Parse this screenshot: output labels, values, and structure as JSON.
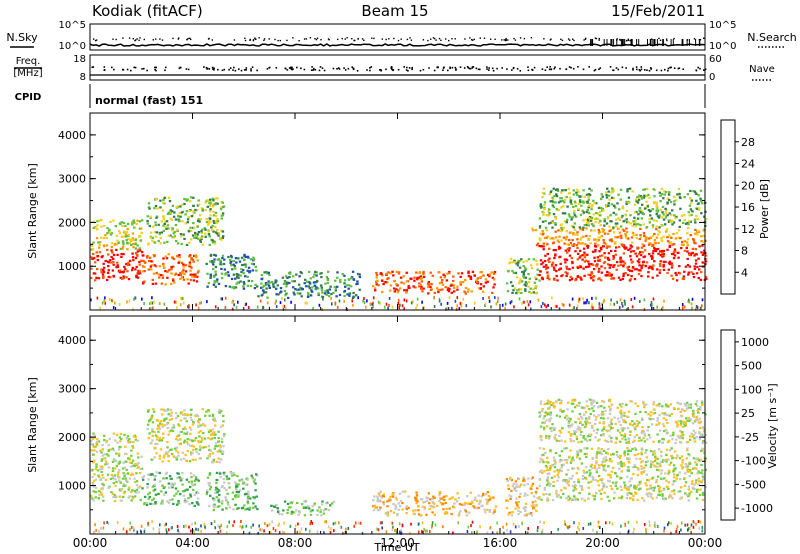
{
  "header": {
    "station": "Kodiak (fitACF)",
    "beam": "Beam 15",
    "date": "15/Feb/2011"
  },
  "strip_labels": {
    "nsky": "N.Sky",
    "nsearch": "N.Search",
    "freq": "Freq.",
    "mhz": "[MHz]",
    "nave": "Nave",
    "cpid": "CPID",
    "cpid_value": "normal (fast) 151"
  },
  "strips": {
    "noise_ticks_left": [
      "10^5",
      "10^0"
    ],
    "noise_ticks_right": [
      "10^5",
      "10^0"
    ],
    "freq_ticks_left": [
      "18",
      "8"
    ],
    "freq_ticks_right": [
      "60",
      "0"
    ]
  },
  "chart_data": [
    {
      "type": "heatmap",
      "panel": "power",
      "ylabel": "Slant Range [km]",
      "yticks": [
        "1000",
        "2000",
        "3000",
        "4000"
      ],
      "ylim": [
        0,
        4500
      ],
      "xlim": [
        0,
        24
      ],
      "colorbar_label": "Power [dB]",
      "colorbar_ticks": [
        "4",
        "8",
        "12",
        "16",
        "20",
        "24",
        "28"
      ],
      "colors": [
        "#0000ee",
        "#1f4fb0",
        "#2f7d4f",
        "#5fbf3f",
        "#f0d020",
        "#ff9a00",
        "#ff5a00",
        "#ff0000"
      ],
      "regions": [
        {
          "t0": 0.0,
          "t1": 2.0,
          "r0": 700,
          "r1": 1400,
          "level": 7
        },
        {
          "t0": 0.0,
          "t1": 2.0,
          "r0": 1400,
          "r1": 2100,
          "level": 4
        },
        {
          "t0": 2.0,
          "t1": 4.2,
          "r0": 600,
          "r1": 1300,
          "level": 6
        },
        {
          "t0": 2.2,
          "t1": 5.2,
          "r0": 1500,
          "r1": 2600,
          "level": 3
        },
        {
          "t0": 4.5,
          "t1": 6.5,
          "r0": 500,
          "r1": 1300,
          "level": 2
        },
        {
          "t0": 6.5,
          "t1": 10.5,
          "r0": 300,
          "r1": 900,
          "level": 2
        },
        {
          "t0": 11.0,
          "t1": 15.8,
          "r0": 400,
          "r1": 900,
          "level": 6
        },
        {
          "t0": 16.2,
          "t1": 17.5,
          "r0": 400,
          "r1": 1200,
          "level": 3
        },
        {
          "t0": 17.5,
          "t1": 24.0,
          "r0": 700,
          "r1": 1500,
          "level": 7
        },
        {
          "t0": 17.2,
          "t1": 24.0,
          "r0": 1500,
          "r1": 1900,
          "level": 5
        },
        {
          "t0": 17.5,
          "t1": 24.0,
          "r0": 1900,
          "r1": 2800,
          "level": 3
        }
      ]
    },
    {
      "type": "heatmap",
      "panel": "velocity",
      "ylabel": "Slant Range [km]",
      "yticks": [
        "1000",
        "2000",
        "3000",
        "4000"
      ],
      "ylim": [
        0,
        4500
      ],
      "xlim": [
        0,
        24
      ],
      "xlabel": "Time UT",
      "xticks": [
        "00:00",
        "04:00",
        "08:00",
        "12:00",
        "16:00",
        "20:00",
        "00:00"
      ],
      "colorbar_label": "Velocity [m s⁻¹]",
      "colorbar_ticks": [
        "1000",
        "500",
        "100",
        "25",
        "-25",
        "-100",
        "-500",
        "-1000"
      ],
      "colors": [
        "#2040c0",
        "#1f6f7f",
        "#2f9f4f",
        "#6fcf3f",
        "#c8c8c8",
        "#ffc020",
        "#ff8a00",
        "#ff4000",
        "#ff0000"
      ],
      "regions": [
        {
          "t0": 0.0,
          "t1": 2.0,
          "r0": 700,
          "r1": 2100,
          "level": 4
        },
        {
          "t0": 2.0,
          "t1": 4.2,
          "r0": 600,
          "r1": 1300,
          "level": 3
        },
        {
          "t0": 2.2,
          "t1": 5.2,
          "r0": 1500,
          "r1": 2600,
          "level": 4
        },
        {
          "t0": 4.5,
          "t1": 6.5,
          "r0": 500,
          "r1": 1300,
          "level": 3
        },
        {
          "t0": 7.0,
          "t1": 9.5,
          "r0": 400,
          "r1": 700,
          "level": 3
        },
        {
          "t0": 11.0,
          "t1": 15.8,
          "r0": 400,
          "r1": 900,
          "level": 5
        },
        {
          "t0": 16.2,
          "t1": 17.5,
          "r0": 400,
          "r1": 1200,
          "level": 5
        },
        {
          "t0": 17.5,
          "t1": 24.0,
          "r0": 700,
          "r1": 1800,
          "level": 4
        },
        {
          "t0": 17.5,
          "t1": 24.0,
          "r0": 1900,
          "r1": 2800,
          "level": 4
        }
      ]
    }
  ]
}
